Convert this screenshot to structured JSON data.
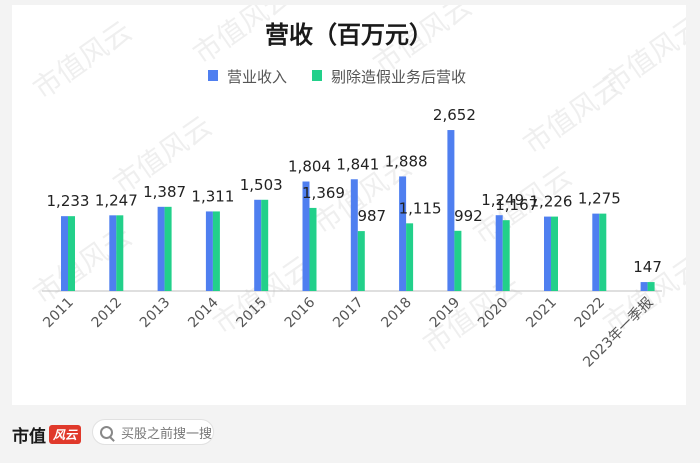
{
  "chart_data": {
    "type": "bar",
    "title": "营收（百万元）",
    "categories": [
      "2011",
      "2012",
      "2013",
      "2014",
      "2015",
      "2016",
      "2017",
      "2018",
      "2019",
      "2020",
      "2021",
      "2022",
      "2023年一季报"
    ],
    "series": [
      {
        "name": "营业收入",
        "color": "#4f7ff0",
        "values": [
          1233,
          1247,
          1387,
          1311,
          1503,
          1804,
          1841,
          1888,
          2652,
          1249,
          1226,
          1275,
          147
        ],
        "labels": [
          "1,233",
          "1,247",
          "1,387",
          "1,311",
          "1,503",
          "1,804",
          "1,841",
          "1,888",
          "2,652",
          "1,249",
          "1,226",
          "1,275",
          "147"
        ]
      },
      {
        "name": "剔除造假业务后营收",
        "color": "#22d08a",
        "values": [
          1233,
          1247,
          1387,
          1311,
          1503,
          1369,
          987,
          1115,
          992,
          1167,
          1226,
          1275,
          147
        ],
        "labels": [
          "",
          "",
          "",
          "",
          "",
          "1,369",
          "987",
          "1,115",
          "992",
          "1,167",
          "",
          "",
          ""
        ]
      }
    ],
    "ylim": [
      0,
      2900
    ],
    "grid": false,
    "legend": "top-center",
    "xlabel": "",
    "ylabel": ""
  },
  "watermark": "市值风云",
  "footer": {
    "brand": "市值",
    "brand_mark": "风云",
    "search_placeholder": "买股之前搜一搜",
    "search_icon": "search-icon"
  }
}
